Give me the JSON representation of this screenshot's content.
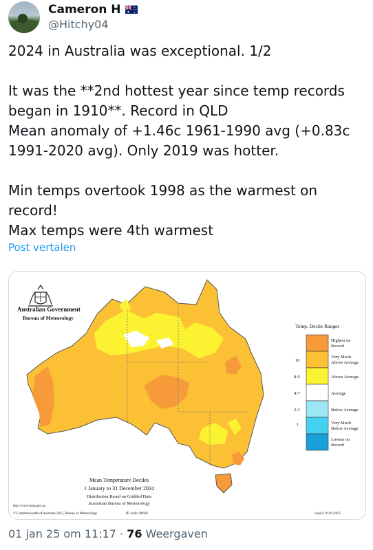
{
  "author": {
    "name": "Cameron H",
    "handle": "@Hitchy04"
  },
  "tweet": {
    "lines": [
      "2024 in Australia was exceptional. 1/2",
      "",
      "It was the **2nd hottest year since temp records",
      "began in 1910**. Record in QLD",
      "Mean anomaly of +1.46c 1961-1990 avg (+0.83c",
      "1991-2020 avg). Only 2019 was hotter.",
      "",
      "Min temps overtook 1998 as the warmest on",
      "record!",
      "Max temps were 4th warmest"
    ],
    "translate_label": "Post vertalen"
  },
  "map": {
    "gov_title": "Australian Government",
    "bureau": "Bureau of Meteorology",
    "legend_title": "Temp. Decile Ranges",
    "legend": [
      {
        "code": "",
        "label_1": "Highest on",
        "label_2": "Record",
        "color": "#f79b3a"
      },
      {
        "code": "10",
        "label_1": "Very Much",
        "label_2": "Above Average",
        "color": "#fbc033"
      },
      {
        "code": "8-9",
        "label_1": "Above Average",
        "label_2": "",
        "color": "#fbf232"
      },
      {
        "code": "4-7",
        "label_1": "Average",
        "label_2": "",
        "color": "#ffffff"
      },
      {
        "code": "2-3",
        "label_1": "Below Average",
        "label_2": "",
        "color": "#9be7f5"
      },
      {
        "code": "1",
        "label_1": "Very Much",
        "label_2": "Below Average",
        "color": "#45d2f0"
      },
      {
        "code": "",
        "label_1": "Lowest on",
        "label_2": "Record",
        "color": "#1aa0d8"
      }
    ],
    "caption_title": "Mean Temperature Deciles",
    "caption_period": "1 January to 31 December 2024",
    "caption_dist": "Distribution Based on Gridded Data",
    "caption_org": "Australian Bureau of Meteorology",
    "url": "http://www.bom.gov.au",
    "copyright": "© Commonwealth of Australia 2025, Bureau of Meteorology",
    "id_code": "ID code: AWAP",
    "issued": "Issued: 01/01/2025"
  },
  "meta": {
    "timestamp": "01 jan 25 om 11:17",
    "separator": " · ",
    "views_count": "76",
    "views_label": " Weergaven"
  }
}
